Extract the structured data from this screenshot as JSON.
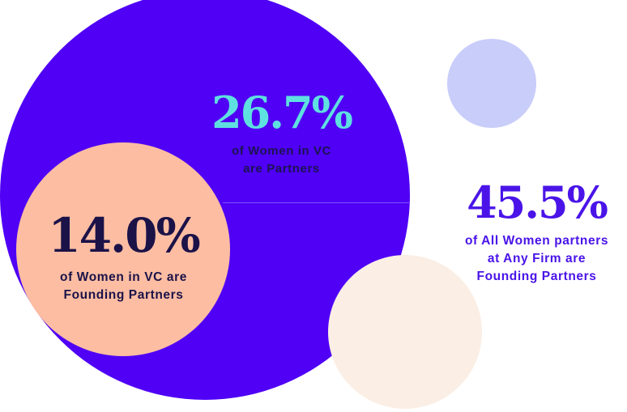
{
  "chart_data": {
    "type": "bubble",
    "title": "",
    "series": [
      {
        "value": 26.7,
        "value_label": "26.7%",
        "caption_lines": [
          "of Women in VC",
          "are Partners"
        ],
        "color": "#4f00f5"
      },
      {
        "value": 14.0,
        "value_label": "14.0%",
        "caption_lines": [
          "of Women in VC are",
          "Founding Partners"
        ],
        "color": "#fcbda2"
      },
      {
        "value": 45.5,
        "value_label": "45.5%",
        "caption_lines": [
          "of All Women partners",
          "at Any Firm are",
          "Founding Partners"
        ],
        "color": "#c9cdfa"
      }
    ],
    "decorative_colors": [
      "#c9cdfa",
      "#fbeee4"
    ]
  }
}
